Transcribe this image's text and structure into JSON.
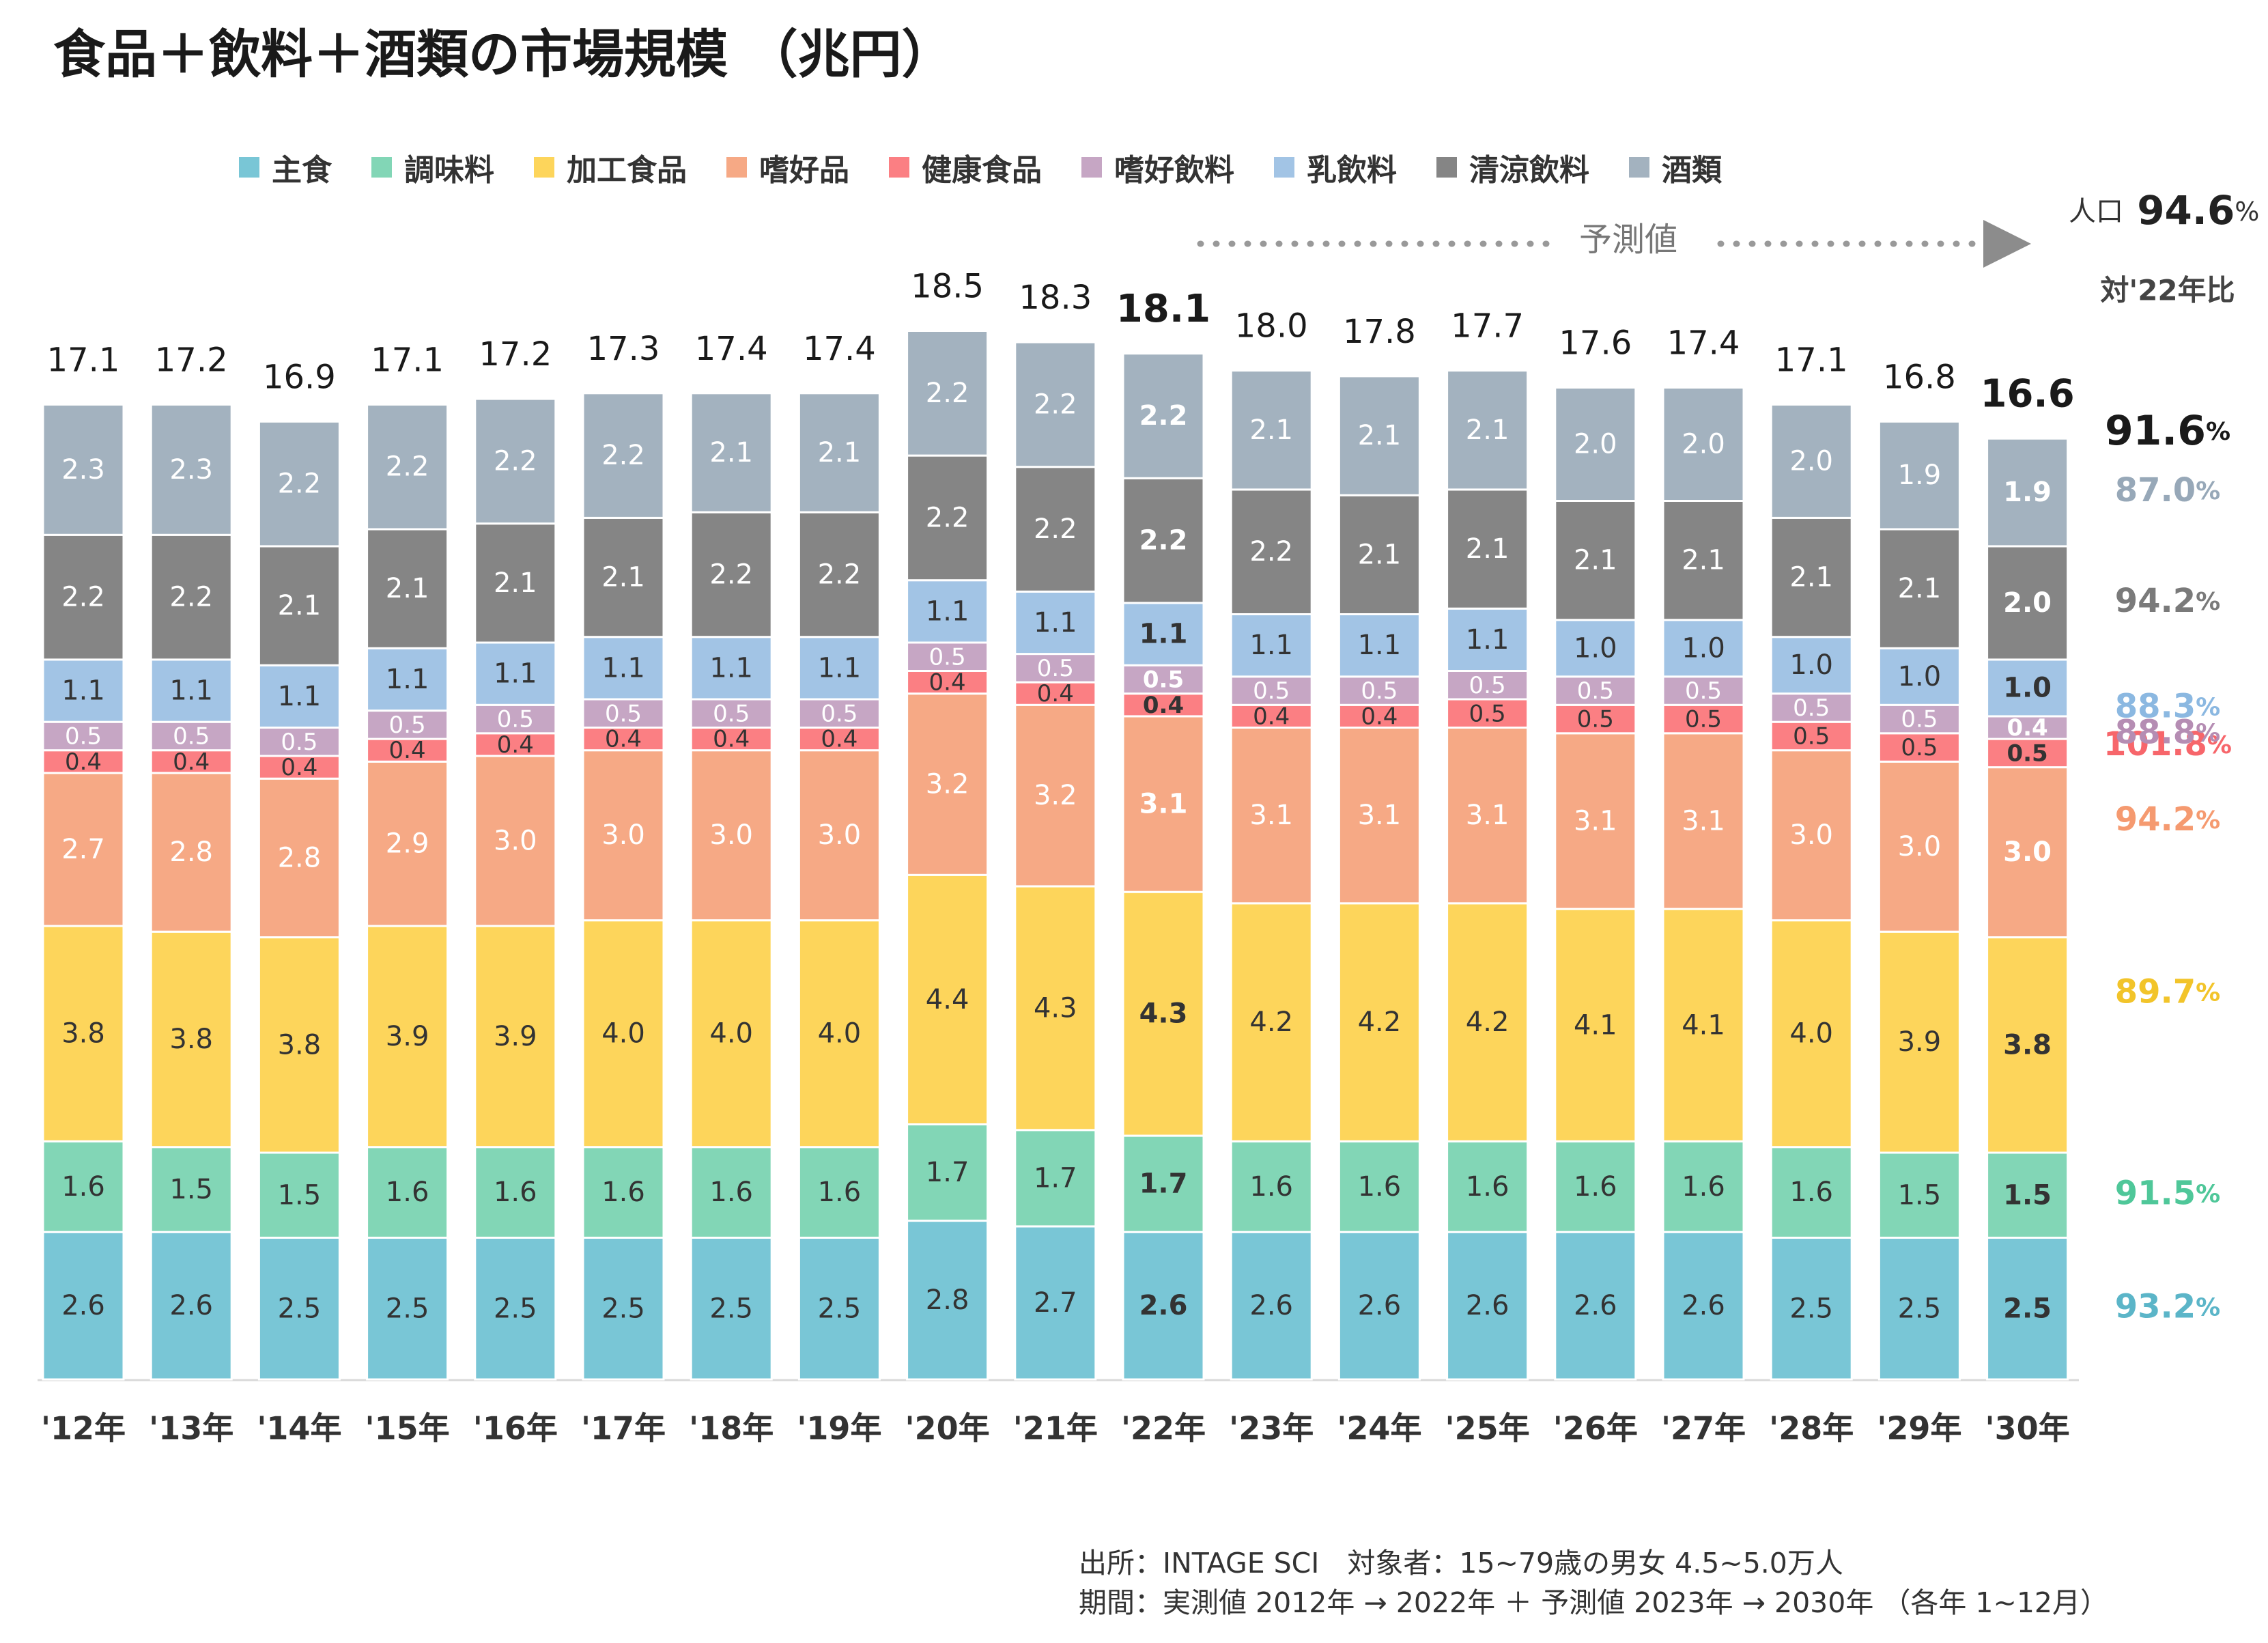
{
  "chart_data": {
    "type": "bar",
    "stacked": true,
    "title": "食品＋飲料＋酒類の市場規模 （兆円）",
    "categories": [
      "'12年",
      "'13年",
      "'14年",
      "'15年",
      "'16年",
      "'17年",
      "'18年",
      "'19年",
      "'20年",
      "'21年",
      "'22年",
      "'23年",
      "'24年",
      "'25年",
      "'26年",
      "'27年",
      "'28年",
      "'29年",
      "'30年"
    ],
    "totals": [
      "17.1",
      "17.2",
      "16.9",
      "17.1",
      "17.2",
      "17.3",
      "17.4",
      "17.4",
      "18.5",
      "18.3",
      "18.1",
      "18.0",
      "17.8",
      "17.7",
      "17.6",
      "17.4",
      "17.1",
      "16.8",
      "16.6"
    ],
    "highlight_categories": [
      "'22年",
      "'30年"
    ],
    "ylim": [
      0,
      19
    ],
    "series": [
      {
        "name": "主食",
        "color": "#79c6d6",
        "values": [
          2.6,
          2.6,
          2.5,
          2.5,
          2.5,
          2.5,
          2.5,
          2.5,
          2.8,
          2.7,
          2.6,
          2.6,
          2.6,
          2.6,
          2.6,
          2.6,
          2.5,
          2.5,
          2.5
        ],
        "ratio_vs_2022": "93.2",
        "ratio_color": "#5bb5c8"
      },
      {
        "name": "調味料",
        "color": "#82d6b6",
        "values": [
          1.6,
          1.5,
          1.5,
          1.6,
          1.6,
          1.6,
          1.6,
          1.6,
          1.7,
          1.7,
          1.7,
          1.6,
          1.6,
          1.6,
          1.6,
          1.6,
          1.6,
          1.5,
          1.5
        ],
        "ratio_vs_2022": "91.5",
        "ratio_color": "#4fc799"
      },
      {
        "name": "加工食品",
        "color": "#fdd55b",
        "values": [
          3.8,
          3.8,
          3.8,
          3.9,
          3.9,
          4.0,
          4.0,
          4.0,
          4.4,
          4.3,
          4.3,
          4.2,
          4.2,
          4.2,
          4.1,
          4.1,
          4.0,
          3.9,
          3.8
        ],
        "ratio_vs_2022": "89.7",
        "ratio_color": "#f2c42a"
      },
      {
        "name": "嗜好品",
        "color": "#f6a985",
        "values": [
          2.7,
          2.8,
          2.8,
          2.9,
          3.0,
          3.0,
          3.0,
          3.0,
          3.2,
          3.2,
          3.1,
          3.1,
          3.1,
          3.1,
          3.1,
          3.1,
          3.0,
          3.0,
          3.0
        ],
        "ratio_vs_2022": "94.2",
        "ratio_color": "#f59a70"
      },
      {
        "name": "健康食品",
        "color": "#fb7f83",
        "values": [
          0.4,
          0.4,
          0.4,
          0.4,
          0.4,
          0.4,
          0.4,
          0.4,
          0.4,
          0.4,
          0.4,
          0.4,
          0.4,
          0.5,
          0.5,
          0.5,
          0.5,
          0.5,
          0.5
        ],
        "ratio_vs_2022": "101.8",
        "ratio_color": "#f7666b"
      },
      {
        "name": "嗜好飲料",
        "color": "#c6a6c4",
        "values": [
          0.5,
          0.5,
          0.5,
          0.5,
          0.5,
          0.5,
          0.5,
          0.5,
          0.5,
          0.5,
          0.5,
          0.5,
          0.5,
          0.5,
          0.5,
          0.5,
          0.5,
          0.5,
          0.4
        ],
        "ratio_vs_2022": "88.8",
        "ratio_color": "#b58db3"
      },
      {
        "name": "乳飲料",
        "color": "#a2c4e5",
        "values": [
          1.1,
          1.1,
          1.1,
          1.1,
          1.1,
          1.1,
          1.1,
          1.1,
          1.1,
          1.1,
          1.1,
          1.1,
          1.1,
          1.1,
          1.0,
          1.0,
          1.0,
          1.0,
          1.0
        ],
        "ratio_vs_2022": "88.3",
        "ratio_color": "#8bb8e1"
      },
      {
        "name": "清涼飲料",
        "color": "#858585",
        "values": [
          2.2,
          2.2,
          2.1,
          2.1,
          2.1,
          2.1,
          2.2,
          2.2,
          2.2,
          2.2,
          2.2,
          2.2,
          2.1,
          2.1,
          2.1,
          2.1,
          2.1,
          2.1,
          2.0
        ],
        "ratio_vs_2022": "94.2",
        "ratio_color": "#7a7a7a"
      },
      {
        "name": "酒類",
        "color": "#a3b2bf",
        "values": [
          2.3,
          2.3,
          2.2,
          2.2,
          2.2,
          2.2,
          2.1,
          2.1,
          2.2,
          2.2,
          2.2,
          2.1,
          2.1,
          2.1,
          2.0,
          2.0,
          2.0,
          1.9,
          1.9
        ],
        "ratio_vs_2022": "87.0",
        "ratio_color": "#97a8b8"
      }
    ],
    "legend_placement": "top",
    "forecast_label": "予測値",
    "population_label": "人口",
    "population_ratio": "94.6",
    "comparison_header": "対'22年比",
    "total_ratio_vs_2022": "91.6",
    "percent_sign": "%"
  },
  "source": {
    "line1": "出所：INTAGE SCI　対象者：15~79歳の男女 4.5~5.0万人",
    "line2": "期間：実測値 2012年 → 2022年 ＋ 予測値 2023年 → 2030年 （各年 1~12月）"
  }
}
